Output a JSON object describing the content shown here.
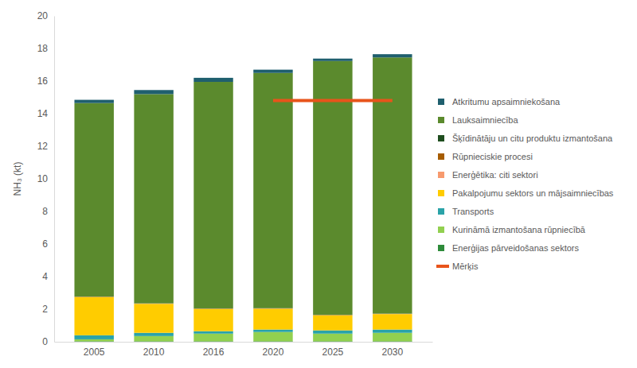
{
  "chart_data": {
    "type": "bar",
    "stacked": true,
    "y_label": "NH₃ (kt)",
    "categories": [
      "2005",
      "2010",
      "2016",
      "2020",
      "2025",
      "2030"
    ],
    "ylim": [
      0,
      20
    ],
    "yticks": [
      0,
      2,
      4,
      6,
      8,
      10,
      12,
      14,
      16,
      18,
      20
    ],
    "grid": false,
    "legend": "right",
    "series": [
      {
        "name": "Enerģijas pārveidošanas sektors",
        "color": "#2e8b3a",
        "values": [
          0.03,
          0.03,
          0.03,
          0.03,
          0.03,
          0.03
        ]
      },
      {
        "name": "Kurināmā izmantošana rūpniecībā",
        "color": "#92d050",
        "values": [
          0.12,
          0.32,
          0.47,
          0.57,
          0.47,
          0.52
        ]
      },
      {
        "name": "Transports",
        "color": "#2aa3a8",
        "values": [
          0.25,
          0.2,
          0.15,
          0.15,
          0.2,
          0.2
        ]
      },
      {
        "name": "Pakalpojumu sektors un mājsaimniecības",
        "color": "#ffcc00",
        "values": [
          2.35,
          1.78,
          1.37,
          1.28,
          0.93,
          0.95
        ]
      },
      {
        "name": "Enerģētika: citi sektori",
        "color": "#f79a6e",
        "values": [
          0.01,
          0.01,
          0.01,
          0.01,
          0.01,
          0.01
        ]
      },
      {
        "name": "Rūpnieciskie procesi",
        "color": "#a65c00",
        "values": [
          0.01,
          0.01,
          0.01,
          0.01,
          0.01,
          0.01
        ]
      },
      {
        "name": "Šķīdinātāju un citu produktu izmantošana",
        "color": "#1e4d1e",
        "values": [
          0.01,
          0.01,
          0.01,
          0.01,
          0.01,
          0.01
        ]
      },
      {
        "name": "Lauksaimniecība",
        "color": "#5b8a2d",
        "values": [
          11.87,
          12.84,
          13.9,
          14.44,
          15.57,
          15.72
        ]
      },
      {
        "name": "Atkritumu apsaimniekošana",
        "color": "#1f5f6e",
        "values": [
          0.2,
          0.25,
          0.25,
          0.2,
          0.15,
          0.2
        ]
      },
      {
        "name": "Mērķis",
        "type": "line",
        "color": "#e8541b",
        "values": [
          null,
          null,
          null,
          14.8,
          14.8,
          14.8
        ]
      }
    ]
  }
}
